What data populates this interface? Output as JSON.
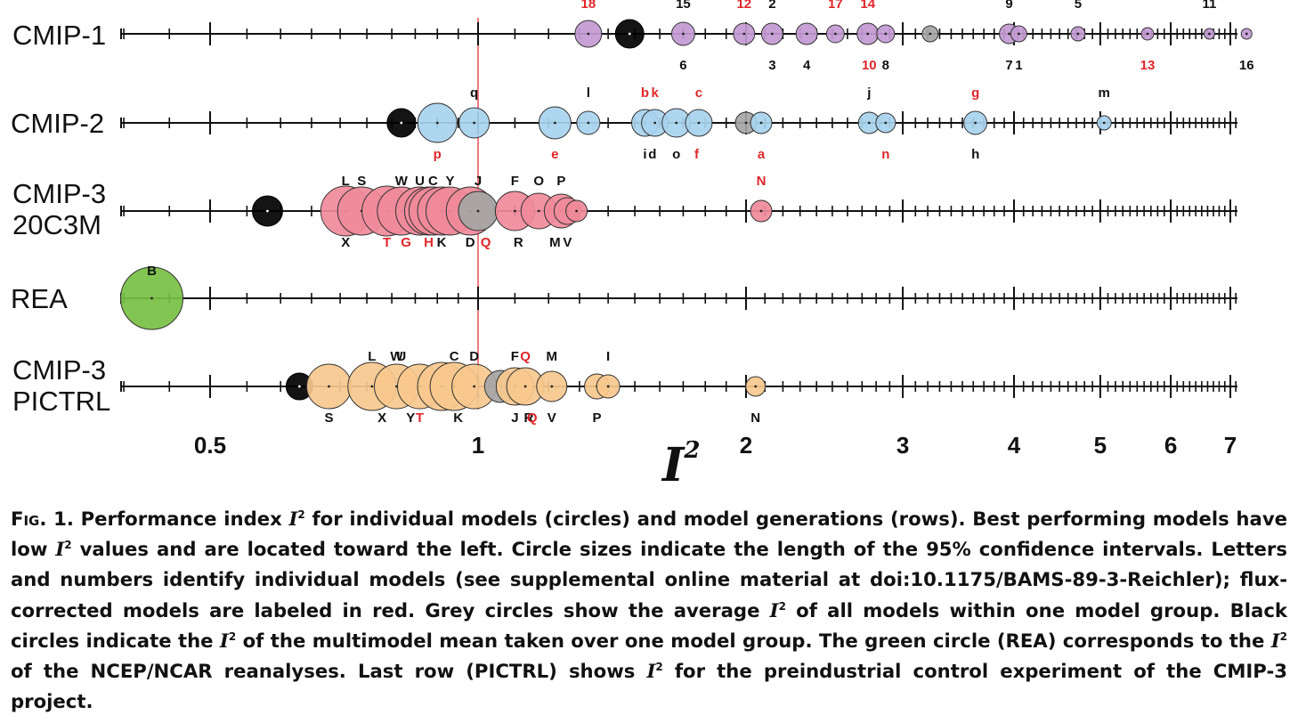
{
  "chart_data": {
    "type": "scatter",
    "xlabel": "I²",
    "xscale": "log",
    "xlim": [
      0.4,
      7.4
    ],
    "xticks": [
      {
        "value": 0.5,
        "label": "0.5"
      },
      {
        "value": 1,
        "label": "1"
      },
      {
        "value": 2,
        "label": "2"
      },
      {
        "value": 3,
        "label": "3"
      },
      {
        "value": 4,
        "label": "4"
      },
      {
        "value": 5,
        "label": "5"
      },
      {
        "value": 6,
        "label": "6"
      },
      {
        "value": 7,
        "label": "7"
      }
    ],
    "reference_line": 1,
    "colors": {
      "CMIP-1": "#c39ad3",
      "CMIP-2": "#a8d2ee",
      "CMIP-3 20C3M": "#f08a9a",
      "REA": "#77c043",
      "CMIP-3 PICTRL": "#f7c88d",
      "group_average": "#a5a5a5",
      "multimodel_mean": "#000000",
      "flux_corrected_label": "#e0262a",
      "reference_line": "#e0262a"
    },
    "rows": [
      {
        "name": "CMIP-1",
        "points": [
          {
            "x": 1.33,
            "r": 15,
            "label": "18",
            "pos": "above",
            "flux": true
          },
          {
            "x": 1.48,
            "r": 16,
            "kind": "mmm"
          },
          {
            "x": 1.7,
            "r": 13,
            "label": "15",
            "pos": "above"
          },
          {
            "x": 1.7,
            "r": 1,
            "label": "6",
            "pos": "below"
          },
          {
            "x": 1.99,
            "r": 12,
            "label": "12",
            "pos": "above",
            "flux": true
          },
          {
            "x": 2.14,
            "r": 12,
            "label": "2",
            "pos": "above"
          },
          {
            "x": 2.14,
            "r": 1,
            "label": "3",
            "pos": "below"
          },
          {
            "x": 2.34,
            "r": 12,
            "label": "4",
            "pos": "below"
          },
          {
            "x": 2.52,
            "r": 10,
            "label": "17",
            "pos": "above",
            "flux": true
          },
          {
            "x": 2.74,
            "r": 12,
            "label": "14",
            "pos": "above",
            "flux": true
          },
          {
            "x": 2.75,
            "r": 1,
            "label": "10",
            "pos": "below",
            "flux": true
          },
          {
            "x": 2.87,
            "r": 10,
            "label": "8",
            "pos": "below"
          },
          {
            "x": 3.22,
            "r": 9,
            "kind": "avg"
          },
          {
            "x": 3.95,
            "r": 11,
            "label": "9",
            "pos": "above"
          },
          {
            "x": 3.95,
            "r": 1,
            "label": "7",
            "pos": "below"
          },
          {
            "x": 4.05,
            "r": 9,
            "label": "1",
            "pos": "below"
          },
          {
            "x": 4.72,
            "r": 8,
            "label": "5",
            "pos": "above"
          },
          {
            "x": 5.65,
            "r": 7,
            "label": "13",
            "pos": "below",
            "flux": true
          },
          {
            "x": 6.63,
            "r": 6,
            "label": "11",
            "pos": "above"
          },
          {
            "x": 7.3,
            "r": 6,
            "label": "16",
            "pos": "below"
          }
        ]
      },
      {
        "name": "CMIP-2",
        "points": [
          {
            "x": 0.82,
            "r": 16,
            "kind": "mmm"
          },
          {
            "x": 0.9,
            "r": 22,
            "label": "p",
            "pos": "below",
            "flux": true
          },
          {
            "x": 0.99,
            "r": 17,
            "label": "q",
            "pos": "above"
          },
          {
            "x": 1.22,
            "r": 18,
            "label": "e",
            "pos": "below",
            "flux": true
          },
          {
            "x": 1.33,
            "r": 13,
            "label": "l",
            "pos": "above"
          },
          {
            "x": 1.54,
            "r": 15,
            "label": "b",
            "pos": "above",
            "flux": true
          },
          {
            "x": 1.54,
            "r": 1,
            "label": "i",
            "pos": "below"
          },
          {
            "x": 1.58,
            "r": 15,
            "label": "k",
            "pos": "above",
            "flux": true
          },
          {
            "x": 1.57,
            "r": 1,
            "label": "d",
            "pos": "below"
          },
          {
            "x": 1.67,
            "r": 16,
            "label": "o",
            "pos": "below"
          },
          {
            "x": 1.77,
            "r": 15,
            "label": "c",
            "pos": "above",
            "flux": true
          },
          {
            "x": 1.76,
            "r": 1,
            "label": "f",
            "pos": "below",
            "flux": true
          },
          {
            "x": 2.0,
            "r": 12,
            "kind": "avg"
          },
          {
            "x": 2.08,
            "r": 12,
            "label": "a",
            "pos": "below",
            "flux": true
          },
          {
            "x": 2.75,
            "r": 12,
            "label": "j",
            "pos": "above"
          },
          {
            "x": 2.87,
            "r": 11,
            "label": "n",
            "pos": "below",
            "flux": true
          },
          {
            "x": 3.62,
            "r": 13,
            "label": "g",
            "pos": "above",
            "flux": true
          },
          {
            "x": 3.62,
            "r": 1,
            "label": "h",
            "pos": "below"
          },
          {
            "x": 5.05,
            "r": 8,
            "label": "m",
            "pos": "above"
          }
        ]
      },
      {
        "name": "CMIP-3 20C3M",
        "points": [
          {
            "x": 0.58,
            "r": 17,
            "kind": "mmm"
          },
          {
            "x": 0.71,
            "r": 28,
            "label": "L",
            "pos": "above"
          },
          {
            "x": 0.71,
            "r": 1,
            "label": "X",
            "pos": "below"
          },
          {
            "x": 0.74,
            "r": 27,
            "label": "S",
            "pos": "above"
          },
          {
            "x": 0.79,
            "r": 28,
            "label": "T",
            "pos": "below",
            "flux": true
          },
          {
            "x": 0.82,
            "r": 27,
            "label": "W",
            "pos": "above"
          },
          {
            "x": 0.83,
            "r": 1,
            "label": "G",
            "pos": "below",
            "flux": true
          },
          {
            "x": 0.86,
            "r": 27,
            "label": "U",
            "pos": "above"
          },
          {
            "x": 0.88,
            "r": 27,
            "label": "H",
            "pos": "below",
            "flux": true
          },
          {
            "x": 0.89,
            "r": 27,
            "label": "C",
            "pos": "above"
          },
          {
            "x": 0.91,
            "r": 27,
            "label": "K",
            "pos": "below"
          },
          {
            "x": 0.93,
            "r": 27,
            "label": "Y",
            "pos": "above"
          },
          {
            "x": 0.98,
            "r": 27,
            "label": "D",
            "pos": "below"
          },
          {
            "x": 1.0,
            "r": 22,
            "kind": "avg",
            "label": "J",
            "pos": "above"
          },
          {
            "x": 1.02,
            "r": 1,
            "label": "Q",
            "pos": "below",
            "flux": true
          },
          {
            "x": 1.1,
            "r": 22,
            "label": "F",
            "pos": "above"
          },
          {
            "x": 1.11,
            "r": 1,
            "label": "R",
            "pos": "below"
          },
          {
            "x": 1.17,
            "r": 20,
            "label": "O",
            "pos": "above"
          },
          {
            "x": 1.24,
            "r": 19,
            "label": "P",
            "pos": "above"
          },
          {
            "x": 1.22,
            "r": 1,
            "label": "M",
            "pos": "below"
          },
          {
            "x": 1.26,
            "r": 15,
            "label": "V",
            "pos": "below"
          },
          {
            "x": 1.29,
            "r": 12
          },
          {
            "x": 2.08,
            "r": 12,
            "label": "N",
            "pos": "above",
            "flux": true
          }
        ]
      },
      {
        "name": "REA",
        "points": [
          {
            "x": 0.43,
            "r": 35,
            "label": "B",
            "pos": "above",
            "kind": "rea"
          }
        ]
      },
      {
        "name": "CMIP-3 PICTRL",
        "points": [
          {
            "x": 0.63,
            "r": 15,
            "kind": "mmm"
          },
          {
            "x": 0.68,
            "r": 25,
            "label": "S",
            "pos": "below"
          },
          {
            "x": 0.76,
            "r": 27,
            "label": "L",
            "pos": "above"
          },
          {
            "x": 0.78,
            "r": 1,
            "label": "X",
            "pos": "below"
          },
          {
            "x": 0.81,
            "r": 25,
            "label": "W",
            "pos": "above"
          },
          {
            "x": 0.82,
            "r": 1,
            "label": "U",
            "pos": "above"
          },
          {
            "x": 0.84,
            "r": 1,
            "label": "Y",
            "pos": "below"
          },
          {
            "x": 0.86,
            "r": 25,
            "label": "T",
            "pos": "below",
            "flux": true
          },
          {
            "x": 0.91,
            "r": 27
          },
          {
            "x": 0.94,
            "r": 27,
            "label": "C",
            "pos": "above"
          },
          {
            "x": 0.95,
            "r": 1,
            "label": "K",
            "pos": "below"
          },
          {
            "x": 0.99,
            "r": 25,
            "label": "D",
            "pos": "above"
          },
          {
            "x": 1.06,
            "r": 18,
            "kind": "avg"
          },
          {
            "x": 1.1,
            "r": 21,
            "label": "F",
            "pos": "above"
          },
          {
            "x": 1.1,
            "r": 1,
            "label": "J",
            "pos": "below"
          },
          {
            "x": 1.13,
            "r": 21,
            "label": "Q",
            "pos": "above",
            "flux": true
          },
          {
            "x": 1.14,
            "r": 1,
            "label": "R",
            "pos": "below"
          },
          {
            "x": 1.15,
            "r": 1,
            "label": "Q",
            "pos": "below",
            "flux": true
          },
          {
            "x": 1.21,
            "r": 17,
            "label": "M",
            "pos": "above"
          },
          {
            "x": 1.21,
            "r": 1,
            "label": "V",
            "pos": "below"
          },
          {
            "x": 1.36,
            "r": 14,
            "label": "P",
            "pos": "below"
          },
          {
            "x": 1.4,
            "r": 13,
            "label": "I",
            "pos": "above"
          },
          {
            "x": 2.05,
            "r": 11,
            "label": "N",
            "pos": "below"
          }
        ]
      }
    ]
  },
  "row_labels": {
    "cmip1": "CMIP-1",
    "cmip2": "CMIP-2",
    "cmip3_a": "CMIP-3",
    "cmip3_b": "20C3M",
    "rea": "REA",
    "pictrl_a": "CMIP-3",
    "pictrl_b": "PICTRL"
  },
  "axis_title": "I",
  "axis_title_sup": "2",
  "caption": {
    "fig": "Fig. 1.",
    "p1": " Performance index ",
    "p2": " for individual models (circles) and model generations (rows). Best performing models have low ",
    "p3": " values and are located toward the left. Circle sizes indicate the length of the 95% confidence intervals. Letters and numbers identify individual models (see supplemental online material at doi:10.1175/BAMS-89-3-Reichler); flux-corrected models are labeled in red. Grey circles show the average ",
    "p4": " of all models within one model group. Black circles indicate the ",
    "p5": " of the multimodel mean taken over one model group. The green circle (REA) corresponds to the ",
    "p6": " of the NCEP/NCAR reanalyses. Last row (PICTRL) shows ",
    "p7": " for the preindustrial control experiment of the CMIP-3 project.",
    "sym": "I",
    "sup": "2"
  }
}
